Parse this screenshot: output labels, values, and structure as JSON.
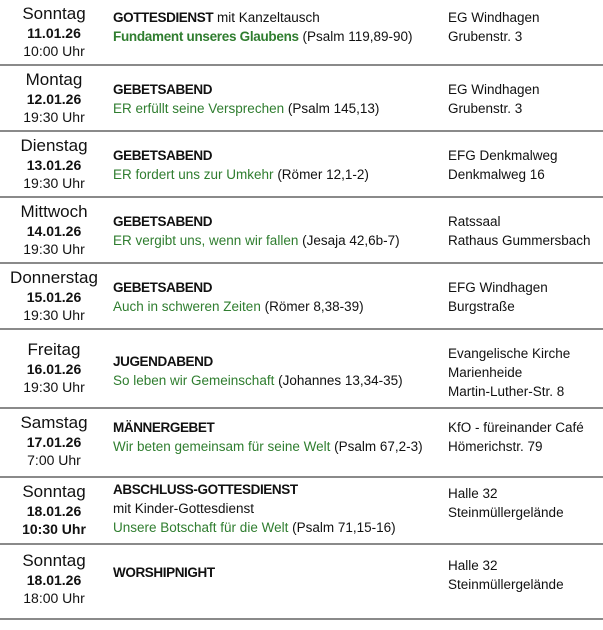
{
  "events": [
    {
      "day": "Sonntag",
      "date": "11.01.26",
      "time": "10:00 Uhr",
      "title": "GOTTESDIENST",
      "title_suffix": " mit Kanzeltausch",
      "extra": "",
      "theme": "Fundament unseres Glaubens",
      "ref": " (Psalm 119,89-90)",
      "loc1": "EG Windhagen",
      "loc2": "Grubenstr. 3",
      "loc3": ""
    },
    {
      "day": "Montag",
      "date": "12.01.26",
      "time": "19:30 Uhr",
      "title": "GEBETSABEND",
      "title_suffix": "",
      "extra": "",
      "theme": "ER erfüllt seine Versprechen",
      "ref": " (Psalm 145,13)",
      "loc1": "EG Windhagen",
      "loc2": "Grubenstr. 3",
      "loc3": ""
    },
    {
      "day": "Dienstag",
      "date": "13.01.26",
      "time": "19:30 Uhr",
      "title": "GEBETSABEND",
      "title_suffix": "",
      "extra": "",
      "theme": "ER fordert uns zur Umkehr",
      "ref": " (Römer 12,1-2)",
      "loc1": "EFG Denkmalweg",
      "loc2": "Denkmalweg 16",
      "loc3": ""
    },
    {
      "day": "Mittwoch",
      "date": "14.01.26",
      "time": "19:30 Uhr",
      "title": "GEBETSABEND",
      "title_suffix": "",
      "extra": "",
      "theme": "ER vergibt uns, wenn wir fallen",
      "ref": " (Jesaja 42,6b-7)",
      "loc1": "Ratssaal",
      "loc2": "Rathaus Gummersbach",
      "loc3": ""
    },
    {
      "day": "Donnerstag",
      "date": "15.01.26",
      "time": "19:30 Uhr",
      "title": "GEBETSABEND",
      "title_suffix": "",
      "extra": "",
      "theme": "Auch in schweren Zeiten",
      "ref": " (Römer 8,38-39)",
      "loc1": "EFG Windhagen",
      "loc2": "Burgstraße",
      "loc3": ""
    },
    {
      "day": "Freitag",
      "date": "16.01.26",
      "time": "19:30 Uhr",
      "title": "JUGENDABEND",
      "title_suffix": "",
      "extra": "",
      "theme": "So leben wir Gemeinschaft",
      "ref": " (Johannes 13,34-35)",
      "loc1": "Evangelische Kirche",
      "loc2": "Marienheide",
      "loc3": "Martin-Luther-Str. 8"
    },
    {
      "day": "Samstag",
      "date": "17.01.26",
      "time": "7:00 Uhr",
      "title": "MÄNNERGEBET",
      "title_suffix": "",
      "extra": "",
      "theme": "Wir beten gemeinsam für seine Welt",
      "ref": " (Psalm 67,2-3)",
      "loc1": "KfO - füreinander Café",
      "loc2": "Hömerichstr. 79",
      "loc3": ""
    },
    {
      "day": "Sonntag",
      "date": "18.01.26",
      "time": "10:30 Uhr",
      "title": "ABSCHLUSS-GOTTESDIENST",
      "title_suffix": "",
      "extra": "mit Kinder-Gottesdienst",
      "theme": "Unsere Botschaft für die Welt",
      "ref": " (Psalm 71,15-16)",
      "loc1": "Halle 32",
      "loc2": "Steinmüllergelände",
      "loc3": ""
    },
    {
      "day": "Sonntag",
      "date": "18.01.26",
      "time": "18:00 Uhr",
      "title": "WORSHIPNIGHT",
      "title_suffix": "",
      "extra": "",
      "theme": "",
      "ref": "",
      "loc1": "Halle 32",
      "loc2": "Steinmüllergelände",
      "loc3": ""
    }
  ],
  "accent_color": "#2f7d2f"
}
